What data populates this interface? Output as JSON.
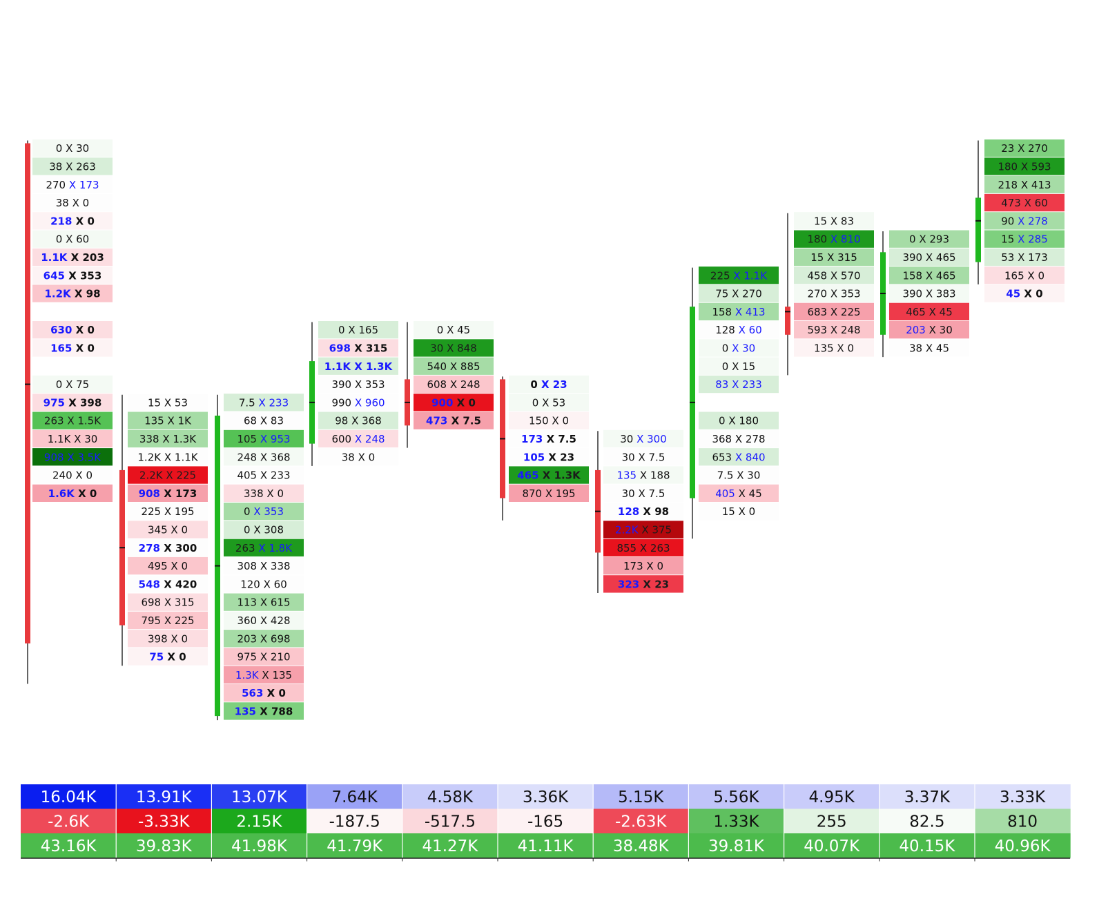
{
  "chart_data": {
    "type": "table",
    "title": "",
    "price_grid": {
      "top_price": 32,
      "row_count": 32
    },
    "colors": {
      "wick": "#222222",
      "up_candle": "#1fb81f",
      "down_candle": "#e8393c",
      "number_text": "#111111",
      "highlight_text": "#1a1aff"
    },
    "bars": [
      {
        "direction": "down",
        "open": 32,
        "close": 5,
        "high": 32,
        "low": 3,
        "cells": [
          {
            "p": 32,
            "text": "0 X 30",
            "bg": "#f4faf4"
          },
          {
            "p": 31,
            "text": "38 X 263",
            "bg": "#d7eed8"
          },
          {
            "p": 30,
            "text": "270 X 173",
            "bg": "#fdfdfd",
            "hl": "ask"
          },
          {
            "p": 29,
            "text": "38 X 0",
            "bg": "#fdfdfd"
          },
          {
            "p": 28,
            "text": "218 X 0",
            "bg": "#fdf3f4",
            "hl": "bid",
            "bold": true
          },
          {
            "p": 27,
            "text": "0 X 60",
            "bg": "#f4faf4"
          },
          {
            "p": 26,
            "text": "1.1K X 203",
            "bg": "#fcdde1",
            "hl": "bid",
            "bold": true
          },
          {
            "p": 25,
            "text": "645 X 353",
            "bg": "#fdf3f4",
            "hl": "bid",
            "bold": true
          },
          {
            "p": 24,
            "text": "1.2K X 98",
            "bg": "#fbc6cc",
            "hl": "bid",
            "bold": true
          },
          {
            "p": 22,
            "text": "630 X 0",
            "bg": "#fcdde1",
            "hl": "bid",
            "bold": true
          },
          {
            "p": 21,
            "text": "165 X 0",
            "bg": "#fdf3f4",
            "hl": "bid",
            "bold": true
          },
          {
            "p": 19,
            "text": "0 X 75",
            "bg": "#f4faf4"
          },
          {
            "p": 18,
            "text": "975 X 398",
            "bg": "#fcdde1",
            "hl": "bid",
            "bold": true
          },
          {
            "p": 17,
            "text": "263 X 1.5K",
            "bg": "#55c255"
          },
          {
            "p": 16,
            "text": "1.1K X 30",
            "bg": "#fbc6cc"
          },
          {
            "p": 15,
            "text": "908 X 3.5K",
            "bg": "#0b700b",
            "hl": "both"
          },
          {
            "p": 14,
            "text": "240 X 0",
            "bg": "#fdfdfd"
          },
          {
            "p": 13,
            "text": "1.6K X 0",
            "bg": "#f6a0ab",
            "hl": "bid",
            "bold": true
          }
        ]
      },
      {
        "direction": "down",
        "open": 14,
        "close": 6,
        "high": 18,
        "low": 4,
        "cells": [
          {
            "p": 18,
            "text": "15 X 53",
            "bg": "#fdfdfd"
          },
          {
            "p": 17,
            "text": "135 X 1K",
            "bg": "#a6dca6"
          },
          {
            "p": 16,
            "text": "338 X 1.3K",
            "bg": "#a6dca6"
          },
          {
            "p": 15,
            "text": "1.2K X 1.1K",
            "bg": "#fdfdfd"
          },
          {
            "p": 14,
            "text": "2.2K X 225",
            "bg": "#e8121d"
          },
          {
            "p": 13,
            "text": "908 X 173",
            "bg": "#f6a0ab",
            "hl": "bid",
            "bold": true
          },
          {
            "p": 12,
            "text": "225 X 195",
            "bg": "#fdfdfd"
          },
          {
            "p": 11,
            "text": "345 X 0",
            "bg": "#fcdde1"
          },
          {
            "p": 10,
            "text": "278 X 300",
            "bg": "#fdfdfd",
            "hl": "bid",
            "bold": true
          },
          {
            "p": 9,
            "text": "495 X 0",
            "bg": "#fbc6cc"
          },
          {
            "p": 8,
            "text": "548 X 420",
            "bg": "#fdfdfd",
            "hl": "bid",
            "bold": true
          },
          {
            "p": 7,
            "text": "698 X 315",
            "bg": "#fcdde1"
          },
          {
            "p": 6,
            "text": "795 X 225",
            "bg": "#fbc6cc"
          },
          {
            "p": 5,
            "text": "398 X 0",
            "bg": "#fcdde1"
          },
          {
            "p": 4,
            "text": "75 X 0",
            "bg": "#fdf3f4",
            "hl": "bid",
            "bold": true
          }
        ]
      },
      {
        "direction": "up",
        "open": 1,
        "close": 17,
        "high": 18,
        "low": 1,
        "cells": [
          {
            "p": 18,
            "text": "7.5 X 233",
            "bg": "#d7eed8",
            "hl": "ask"
          },
          {
            "p": 17,
            "text": "68 X 83",
            "bg": "#fdfdfd"
          },
          {
            "p": 16,
            "text": "105 X 953",
            "bg": "#55c255",
            "hl": "ask"
          },
          {
            "p": 15,
            "text": "248 X 368",
            "bg": "#f4faf4"
          },
          {
            "p": 14,
            "text": "405 X 233",
            "bg": "#fdfdfd"
          },
          {
            "p": 13,
            "text": "338 X 0",
            "bg": "#fcdde1"
          },
          {
            "p": 12,
            "text": "0 X 353",
            "bg": "#a6dca6",
            "hl": "ask"
          },
          {
            "p": 11,
            "text": "0 X 308",
            "bg": "#d7eed8"
          },
          {
            "p": 10,
            "text": "263 X 1.8K",
            "bg": "#1e9a1e",
            "hl": "ask"
          },
          {
            "p": 9,
            "text": "308 X 338",
            "bg": "#fdfdfd"
          },
          {
            "p": 8,
            "text": "120 X 60",
            "bg": "#fdfdfd"
          },
          {
            "p": 7,
            "text": "113 X 615",
            "bg": "#a6dca6"
          },
          {
            "p": 6,
            "text": "360 X 428",
            "bg": "#f4faf4"
          },
          {
            "p": 5,
            "text": "203 X 698",
            "bg": "#a6dca6"
          },
          {
            "p": 4,
            "text": "975 X 210",
            "bg": "#fbc6cc"
          },
          {
            "p": 3,
            "text": "1.3K X 135",
            "bg": "#f6a0ab",
            "hl": "bid"
          },
          {
            "p": 2,
            "text": "563 X 0",
            "bg": "#fbc6cc",
            "hl": "bid",
            "bold": true
          },
          {
            "p": 1,
            "text": "135 X 788",
            "bg": "#7ed07e",
            "hl": "bid",
            "bold": true
          }
        ]
      },
      {
        "direction": "up",
        "open": 16,
        "close": 20,
        "high": 22,
        "low": 15,
        "cells": [
          {
            "p": 22,
            "text": "0 X 165",
            "bg": "#d7eed8"
          },
          {
            "p": 21,
            "text": "698 X 315",
            "bg": "#fcdde1",
            "hl": "bid",
            "bold": true
          },
          {
            "p": 20,
            "text": "1.1K X 1.3K",
            "bg": "#d7eed8",
            "hl": "both",
            "bold": true
          },
          {
            "p": 19,
            "text": "390 X 353",
            "bg": "#fdfdfd"
          },
          {
            "p": 18,
            "text": "990 X 960",
            "bg": "#fdfdfd",
            "hl": "ask"
          },
          {
            "p": 17,
            "text": "98 X 368",
            "bg": "#d7eed8"
          },
          {
            "p": 16,
            "text": "600 X 248",
            "bg": "#fcdde1",
            "hl": "ask"
          },
          {
            "p": 15,
            "text": "38 X 0",
            "bg": "#fdfdfd"
          }
        ]
      },
      {
        "direction": "down",
        "open": 19,
        "close": 17,
        "high": 22,
        "low": 16,
        "cells": [
          {
            "p": 22,
            "text": "0 X 45",
            "bg": "#f4faf4"
          },
          {
            "p": 21,
            "text": "30 X 848",
            "bg": "#1e9a1e"
          },
          {
            "p": 20,
            "text": "540 X 885",
            "bg": "#a6dca6"
          },
          {
            "p": 19,
            "text": "608 X 248",
            "bg": "#fbc6cc"
          },
          {
            "p": 18,
            "text": "900 X 0",
            "bg": "#e8121d",
            "hl": "bid",
            "bold": true
          },
          {
            "p": 17,
            "text": "473 X 7.5",
            "bg": "#f6a0ab",
            "hl": "bid",
            "bold": true
          }
        ]
      },
      {
        "direction": "down",
        "open": 19,
        "close": 13,
        "high": 19,
        "low": 12,
        "cells": [
          {
            "p": 19,
            "text": "0 X 23",
            "bg": "#f4faf4",
            "hl": "ask",
            "bold": true
          },
          {
            "p": 18,
            "text": "0 X 53",
            "bg": "#f4faf4"
          },
          {
            "p": 17,
            "text": "150 X 0",
            "bg": "#fdf3f4"
          },
          {
            "p": 16,
            "text": "173 X 7.5",
            "bg": "#fdfdfd",
            "hl": "bid",
            "bold": true
          },
          {
            "p": 15,
            "text": "105 X 23",
            "bg": "#fdfdfd",
            "hl": "bid",
            "bold": true
          },
          {
            "p": 14,
            "text": "465 X 1.3K",
            "bg": "#1e9a1e",
            "hl": "bid",
            "bold": true
          },
          {
            "p": 13,
            "text": "870 X 195",
            "bg": "#f6a0ab"
          }
        ]
      },
      {
        "direction": "down",
        "open": 14,
        "close": 10,
        "high": 16,
        "low": 8,
        "cells": [
          {
            "p": 16,
            "text": "30 X 300",
            "bg": "#f4faf4",
            "hl": "ask"
          },
          {
            "p": 15,
            "text": "30 X 7.5",
            "bg": "#fdfdfd"
          },
          {
            "p": 14,
            "text": "135 X 188",
            "bg": "#f4faf4",
            "hl": "bid"
          },
          {
            "p": 13,
            "text": "30 X 7.5",
            "bg": "#fdfdfd"
          },
          {
            "p": 12,
            "text": "128 X 98",
            "bg": "#fdfdfd",
            "hl": "bid",
            "bold": true
          },
          {
            "p": 11,
            "text": "2.2K X 375",
            "bg": "#b5080d",
            "hl": "bid"
          },
          {
            "p": 10,
            "text": "855 X 263",
            "bg": "#e8121d"
          },
          {
            "p": 9,
            "text": "173 X 0",
            "bg": "#f6a0ab"
          },
          {
            "p": 8,
            "text": "323 X 23",
            "bg": "#ee3a4a",
            "hl": "bid",
            "bold": true
          }
        ]
      },
      {
        "direction": "up",
        "open": 13,
        "close": 23,
        "high": 25,
        "low": 11,
        "cells": [
          {
            "p": 25,
            "text": "225 X 1.1K",
            "bg": "#1e9a1e",
            "hl": "ask"
          },
          {
            "p": 24,
            "text": "75 X 270",
            "bg": "#d7eed8"
          },
          {
            "p": 23,
            "text": "158 X 413",
            "bg": "#a6dca6",
            "hl": "ask"
          },
          {
            "p": 22,
            "text": "128 X 60",
            "bg": "#fdfdfd",
            "hl": "ask"
          },
          {
            "p": 21,
            "text": "0 X 30",
            "bg": "#f4faf4",
            "hl": "ask"
          },
          {
            "p": 20,
            "text": "0 X 15",
            "bg": "#f4faf4"
          },
          {
            "p": 19,
            "text": "83 X 233",
            "bg": "#d7eed8",
            "hl": "both"
          },
          {
            "p": 17,
            "text": "0 X 180",
            "bg": "#d7eed8"
          },
          {
            "p": 16,
            "text": "368 X 278",
            "bg": "#fdfdfd"
          },
          {
            "p": 15,
            "text": "653 X 840",
            "bg": "#d7eed8",
            "hl": "ask"
          },
          {
            "p": 14,
            "text": "7.5 X 30",
            "bg": "#fdfdfd"
          },
          {
            "p": 13,
            "text": "405 X 45",
            "bg": "#fbc6cc",
            "hl": "bid"
          },
          {
            "p": 12,
            "text": "15 X 0",
            "bg": "#fdfdfd"
          }
        ]
      },
      {
        "direction": "down",
        "open": 23,
        "close": 22,
        "high": 28,
        "low": 20,
        "cells": [
          {
            "p": 28,
            "text": "15 X 83",
            "bg": "#f4faf4"
          },
          {
            "p": 27,
            "text": "180 X 810",
            "bg": "#1e9a1e",
            "hl": "ask"
          },
          {
            "p": 26,
            "text": "15 X 315",
            "bg": "#a6dca6"
          },
          {
            "p": 25,
            "text": "458 X 570",
            "bg": "#d7eed8"
          },
          {
            "p": 24,
            "text": "270 X 353",
            "bg": "#f4faf4"
          },
          {
            "p": 23,
            "text": "683 X 225",
            "bg": "#f6a0ab"
          },
          {
            "p": 22,
            "text": "593 X 248",
            "bg": "#fbc6cc"
          },
          {
            "p": 21,
            "text": "135 X 0",
            "bg": "#fdf3f4"
          }
        ]
      },
      {
        "direction": "up",
        "open": 22,
        "close": 26,
        "high": 27,
        "low": 21,
        "cells": [
          {
            "p": 27,
            "text": "0 X 293",
            "bg": "#a6dca6"
          },
          {
            "p": 26,
            "text": "390 X 465",
            "bg": "#d7eed8"
          },
          {
            "p": 25,
            "text": "158 X 465",
            "bg": "#a6dca6"
          },
          {
            "p": 24,
            "text": "390 X 383",
            "bg": "#f4faf4"
          },
          {
            "p": 23,
            "text": "465 X 45",
            "bg": "#ee3a4a"
          },
          {
            "p": 22,
            "text": "203 X 30",
            "bg": "#f6a0ab",
            "hl": "bid"
          },
          {
            "p": 21,
            "text": "38 X 45",
            "bg": "#fdfdfd"
          }
        ]
      },
      {
        "direction": "up",
        "open": 26,
        "close": 29,
        "high": 32,
        "low": 25,
        "cells": [
          {
            "p": 32,
            "text": "23 X 270",
            "bg": "#7ed07e"
          },
          {
            "p": 31,
            "text": "180 X 593",
            "bg": "#1e9a1e"
          },
          {
            "p": 30,
            "text": "218 X 413",
            "bg": "#a6dca6"
          },
          {
            "p": 29,
            "text": "473 X 60",
            "bg": "#ee3a4a"
          },
          {
            "p": 28,
            "text": "90 X 278",
            "bg": "#a6dca6",
            "hl": "ask"
          },
          {
            "p": 27,
            "text": "15 X 285",
            "bg": "#7ed07e",
            "hl": "ask"
          },
          {
            "p": 26,
            "text": "53 X 173",
            "bg": "#d7eed8"
          },
          {
            "p": 25,
            "text": "165 X 0",
            "bg": "#fcdde1"
          },
          {
            "p": 24,
            "text": "45 X 0",
            "bg": "#fdf3f4",
            "hl": "bid",
            "bold": true
          }
        ]
      }
    ],
    "summary_rows": [
      {
        "values": [
          "16.04K",
          "13.91K",
          "13.07K",
          "7.64K",
          "4.58K",
          "3.36K",
          "5.15K",
          "5.56K",
          "4.95K",
          "3.37K",
          "3.33K"
        ],
        "colors": [
          "#0a1ef0",
          "#1a2ff5",
          "#2a3ff2",
          "#9aa2f6",
          "#c8ccfa",
          "#dcdffb",
          "#b5baf8",
          "#c0c4f9",
          "#c9ccfa",
          "#dcdffb",
          "#dcdffb"
        ],
        "text_colors": [
          "#ffffff",
          "#ffffff",
          "#ffffff",
          "#111111",
          "#111111",
          "#111111",
          "#111111",
          "#111111",
          "#111111",
          "#111111",
          "#111111"
        ]
      },
      {
        "values": [
          "-2.6K",
          "-3.33K",
          "2.15K",
          "-187.5",
          "-517.5",
          "-165",
          "-2.63K",
          "1.33K",
          "255",
          "82.5",
          "810"
        ],
        "colors": [
          "#ee4a58",
          "#e8121d",
          "#1ca81c",
          "#fdf5f5",
          "#fbd8dc",
          "#fdf2f3",
          "#ee4a58",
          "#5fc05f",
          "#e2f3e2",
          "#f7fbf7",
          "#a6dca6"
        ],
        "text_colors": [
          "#ffffff",
          "#ffffff",
          "#ffffff",
          "#111111",
          "#111111",
          "#111111",
          "#ffffff",
          "#111111",
          "#111111",
          "#111111",
          "#111111"
        ]
      },
      {
        "values": [
          "43.16K",
          "39.83K",
          "41.98K",
          "41.79K",
          "41.27K",
          "41.11K",
          "38.48K",
          "39.81K",
          "40.07K",
          "40.15K",
          "40.96K"
        ],
        "colors": [
          "#4cbb4c",
          "#4cbb4c",
          "#4cbb4c",
          "#4cbb4c",
          "#4cbb4c",
          "#4cbb4c",
          "#4cbb4c",
          "#4cbb4c",
          "#4cbb4c",
          "#4cbb4c",
          "#4cbb4c"
        ],
        "text_colors": [
          "#ffffff",
          "#ffffff",
          "#ffffff",
          "#ffffff",
          "#ffffff",
          "#ffffff",
          "#ffffff",
          "#ffffff",
          "#ffffff",
          "#ffffff",
          "#ffffff"
        ]
      }
    ]
  }
}
